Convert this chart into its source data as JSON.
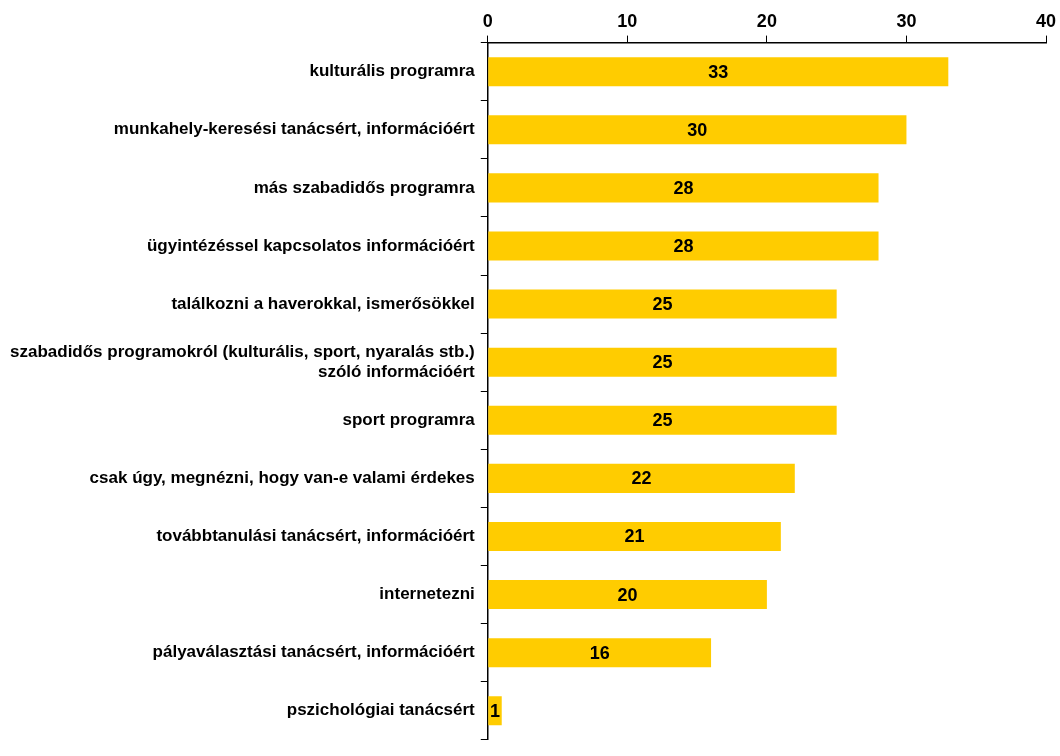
{
  "chart_data": {
    "type": "bar",
    "orientation": "horizontal",
    "categories": [
      "kulturális programra",
      "munkahely-keresési tanácsért, információért",
      "más szabadidős programra",
      "ügyintézéssel kapcsolatos információért",
      "találkozni a haverokkal, ismerősökkel",
      "szabadidős programokról (kulturális, sport, nyaralás stb.) szóló információért",
      "sport programra",
      "csak úgy, megnézni, hogy van-e valami érdekes",
      "továbbtanulási tanácsért, információért",
      "internetezni",
      "pályaválasztási tanácsért, információért",
      "pszichológiai tanácsért"
    ],
    "values": [
      33,
      30,
      28,
      28,
      25,
      25,
      25,
      22,
      21,
      20,
      16,
      1
    ],
    "color": "#ffcc00",
    "xlim": [
      0,
      40
    ],
    "xticks": [
      0,
      10,
      20,
      30,
      40
    ],
    "grid": false,
    "legend": false,
    "data_labels": true
  }
}
